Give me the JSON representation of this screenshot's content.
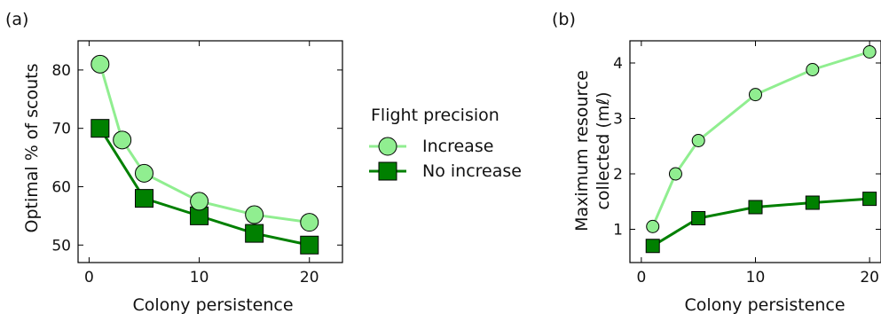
{
  "chart_data": [
    {
      "panel_label": "(a)",
      "type": "line",
      "xlabel": "Colony persistence",
      "ylabel": "Optimal % of scouts",
      "xlim": [
        -1,
        23
      ],
      "ylim": [
        47,
        85
      ],
      "xticks": [
        0,
        10,
        20
      ],
      "yticks": [
        50,
        60,
        70,
        80
      ],
      "grid": false,
      "series": [
        {
          "name": "Increase",
          "marker": "circle",
          "color": "#90ee90",
          "x": [
            1,
            3,
            5,
            10,
            15,
            20
          ],
          "y": [
            81,
            68,
            62.3,
            57.5,
            55.2,
            53.9
          ]
        },
        {
          "name": "No increase",
          "marker": "square",
          "color": "#008000",
          "x": [
            1,
            5,
            10,
            15,
            20
          ],
          "y": [
            70,
            58,
            55,
            52,
            50
          ]
        }
      ]
    },
    {
      "panel_label": "(b)",
      "type": "line",
      "xlabel": "Colony persistence",
      "ylabel": "Maximum resource collected (mℓ)",
      "ylabel_lines": [
        "Maximum resource",
        "collected (mℓ)"
      ],
      "xlim": [
        -1,
        21
      ],
      "ylim": [
        0.4,
        4.4
      ],
      "xticks": [
        0,
        10,
        20
      ],
      "yticks": [
        1,
        2,
        3,
        4
      ],
      "grid": false,
      "series": [
        {
          "name": "Increase",
          "marker": "circle",
          "color": "#90ee90",
          "x": [
            1,
            3,
            5,
            10,
            15,
            20
          ],
          "y": [
            1.05,
            2.0,
            2.6,
            3.43,
            3.88,
            4.2
          ]
        },
        {
          "name": "No increase",
          "marker": "square",
          "color": "#008000",
          "x": [
            1,
            5,
            10,
            15,
            20
          ],
          "y": [
            0.7,
            1.2,
            1.4,
            1.48,
            1.55
          ]
        }
      ]
    }
  ],
  "legend": {
    "title": "Flight precision",
    "placement": "between panels",
    "entries": [
      {
        "label": "Increase",
        "marker": "circle",
        "color": "#90ee90"
      },
      {
        "label": "No increase",
        "marker": "square",
        "color": "#008000"
      }
    ]
  }
}
